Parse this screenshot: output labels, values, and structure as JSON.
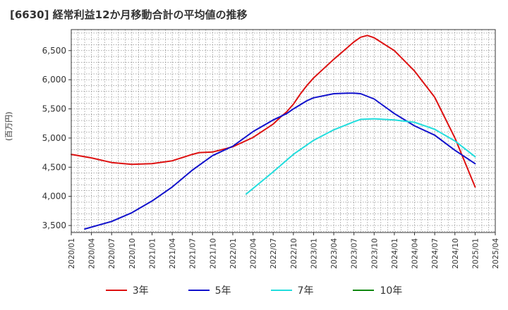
{
  "chart_data": {
    "type": "line",
    "title": "[6630]  経常利益12か月移動合計の平均値の推移",
    "ylabel": "(百万円)",
    "ylim": [
      3380,
      6860
    ],
    "yticks": [
      3500,
      4000,
      4500,
      5000,
      5500,
      6000,
      6500
    ],
    "ytick_labels": [
      "3,500",
      "4,000",
      "4,500",
      "5,000",
      "5,500",
      "6,000",
      "6,500"
    ],
    "xlim": [
      "2020-01",
      "2025-04"
    ],
    "xtick_labels": [
      "2020/01",
      "2020/04",
      "2020/07",
      "2020/10",
      "2021/01",
      "2021/04",
      "2021/07",
      "2021/10",
      "2022/01",
      "2022/04",
      "2022/07",
      "2022/10",
      "2023/01",
      "2023/04",
      "2023/07",
      "2023/10",
      "2024/01",
      "2024/04",
      "2024/07",
      "2024/10",
      "2025/01",
      "2025/04"
    ],
    "grid": true,
    "legend_position": "bottom",
    "series": [
      {
        "name": "3年",
        "color": "#dd1111",
        "x": [
          "2020-01",
          "2020-04",
          "2020-07",
          "2020-10",
          "2021-01",
          "2021-04",
          "2021-07",
          "2021-08",
          "2021-10",
          "2022-01",
          "2022-04",
          "2022-07",
          "2022-08",
          "2022-09",
          "2022-10",
          "2022-11",
          "2022-12",
          "2023-01",
          "2023-04",
          "2023-06",
          "2023-07",
          "2023-08",
          "2023-09",
          "2023-10",
          "2024-01",
          "2024-04",
          "2024-07",
          "2024-10",
          "2025-01"
        ],
        "values": [
          4720,
          4660,
          4580,
          4550,
          4560,
          4610,
          4720,
          4750,
          4760,
          4850,
          5010,
          5240,
          5350,
          5450,
          5580,
          5750,
          5900,
          6030,
          6350,
          6550,
          6650,
          6730,
          6760,
          6720,
          6500,
          6150,
          5700,
          5000,
          4160
        ]
      },
      {
        "name": "5年",
        "color": "#1111cc",
        "x": [
          "2020-03",
          "2020-07",
          "2020-10",
          "2021-01",
          "2021-04",
          "2021-07",
          "2021-10",
          "2022-01",
          "2022-04",
          "2022-07",
          "2022-09",
          "2022-10",
          "2022-12",
          "2023-01",
          "2023-04",
          "2023-06",
          "2023-07",
          "2023-08",
          "2023-10",
          "2024-01",
          "2024-04",
          "2024-07",
          "2024-10",
          "2025-01"
        ],
        "values": [
          3440,
          3570,
          3720,
          3920,
          4160,
          4450,
          4700,
          4860,
          5110,
          5310,
          5420,
          5500,
          5640,
          5690,
          5760,
          5770,
          5770,
          5760,
          5670,
          5420,
          5210,
          5050,
          4790,
          4560
        ]
      },
      {
        "name": "7年",
        "color": "#22dddd",
        "x": [
          "2022-03",
          "2022-07",
          "2022-10",
          "2023-01",
          "2023-04",
          "2023-07",
          "2023-08",
          "2023-10",
          "2024-01",
          "2024-04",
          "2024-07",
          "2024-10",
          "2025-01"
        ],
        "values": [
          4040,
          4420,
          4720,
          4960,
          5140,
          5280,
          5320,
          5330,
          5310,
          5270,
          5150,
          4950,
          4680
        ]
      },
      {
        "name": "10年",
        "color": "#118811",
        "x": [],
        "values": []
      }
    ]
  }
}
